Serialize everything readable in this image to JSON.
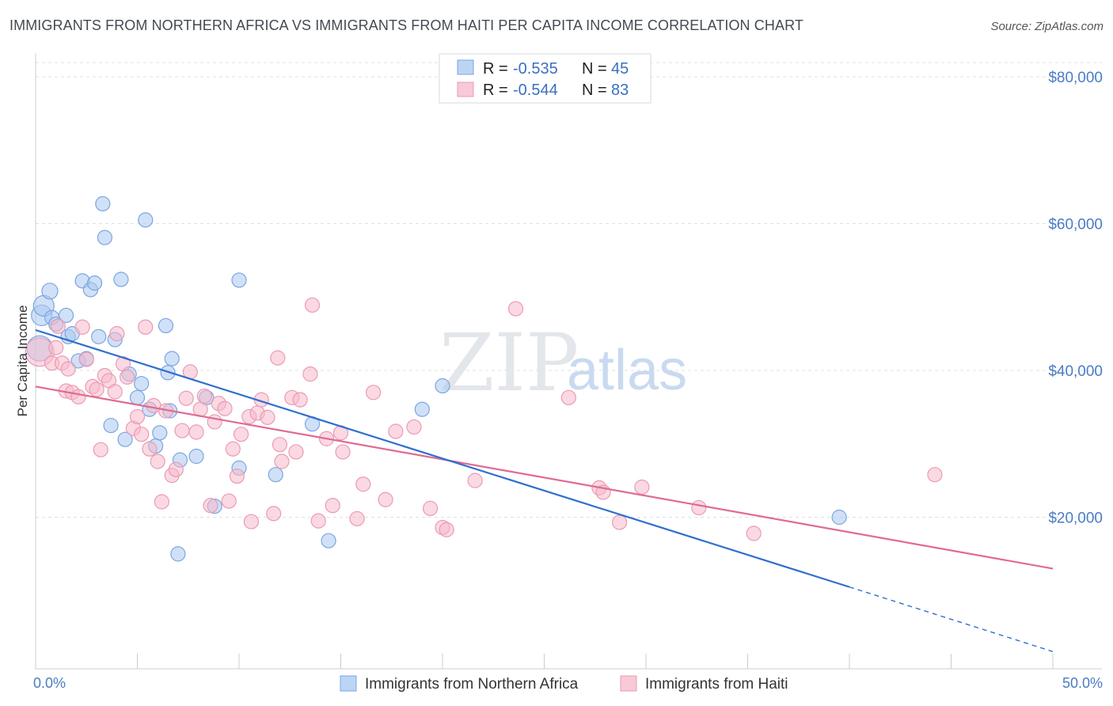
{
  "title": "IMMIGRANTS FROM NORTHERN AFRICA VS IMMIGRANTS FROM HAITI PER CAPITA INCOME CORRELATION CHART",
  "source": "Source: ZipAtlas.com",
  "watermark": {
    "zip": "ZIP",
    "atlas": "atlas"
  },
  "colors": {
    "blue_fill": "#a9c8f0",
    "blue_stroke": "#7aa6e0",
    "blue_line": "#2f6fce",
    "pink_fill": "#f5b9cb",
    "pink_stroke": "#ec9ab4",
    "pink_line": "#e06a93",
    "grid": "#dde1e6",
    "tick_text": "#4a7cc4"
  },
  "legend": {
    "rows": [
      {
        "r_label": "R = ",
        "r_value": "-0.535",
        "n_label": "N = ",
        "n_value": "45",
        "series": "blue"
      },
      {
        "r_label": "R = ",
        "r_value": "-0.544",
        "n_label": "N = ",
        "n_value": "83",
        "series": "pink"
      }
    ]
  },
  "chart_data": {
    "type": "scatter",
    "ylabel": "Per Capita Income",
    "xlim": [
      0,
      50
    ],
    "ylim": [
      0,
      80000
    ],
    "x_tick_labels": [
      "0.0%",
      "50.0%"
    ],
    "y_ticks": [
      20000,
      40000,
      60000,
      80000
    ],
    "y_tick_labels": [
      "$20,000",
      "$40,000",
      "$60,000",
      "$80,000"
    ],
    "grid": "horizontal dashed",
    "legend_placement": "top-center",
    "series": [
      {
        "name": "Immigrants from Northern Africa",
        "color": "blue",
        "trend": {
          "x0": 0,
          "y0": 45500,
          "x1": 40,
          "y1": 10500,
          "dash_to_x": 50,
          "dash_to_y": 1700
        },
        "points": [
          [
            0.2,
            43000,
            16
          ],
          [
            0.3,
            47500,
            13
          ],
          [
            0.4,
            48800,
            13
          ],
          [
            0.7,
            50800,
            10
          ],
          [
            0.8,
            47200,
            9
          ],
          [
            1.0,
            46300,
            9
          ],
          [
            1.5,
            47500,
            9
          ],
          [
            1.6,
            44600,
            9
          ],
          [
            1.8,
            45000,
            9
          ],
          [
            2.1,
            41300,
            9
          ],
          [
            2.3,
            52200,
            9
          ],
          [
            2.5,
            41600,
            9
          ],
          [
            2.7,
            51000,
            9
          ],
          [
            2.9,
            51900,
            9
          ],
          [
            3.1,
            44600,
            9
          ],
          [
            3.3,
            62700,
            9
          ],
          [
            3.4,
            58100,
            9
          ],
          [
            3.7,
            32500,
            9
          ],
          [
            3.9,
            44200,
            9
          ],
          [
            4.2,
            52400,
            9
          ],
          [
            4.4,
            30600,
            9
          ],
          [
            4.6,
            39500,
            9
          ],
          [
            5.0,
            36300,
            9
          ],
          [
            5.2,
            38200,
            9
          ],
          [
            5.4,
            60500,
            9
          ],
          [
            5.6,
            34700,
            9
          ],
          [
            5.9,
            29700,
            9
          ],
          [
            6.1,
            31500,
            9
          ],
          [
            6.4,
            46100,
            9
          ],
          [
            6.5,
            39700,
            9
          ],
          [
            6.6,
            34500,
            9
          ],
          [
            6.7,
            41600,
            9
          ],
          [
            7.0,
            15000,
            9
          ],
          [
            7.1,
            27800,
            9
          ],
          [
            7.9,
            28300,
            9
          ],
          [
            8.4,
            36300,
            9
          ],
          [
            8.8,
            21500,
            9
          ],
          [
            10.0,
            26700,
            9
          ],
          [
            10.0,
            52300,
            9
          ],
          [
            11.8,
            25800,
            9
          ],
          [
            13.6,
            32700,
            9
          ],
          [
            14.4,
            16800,
            9
          ],
          [
            19.0,
            34700,
            9
          ],
          [
            20.0,
            37900,
            9
          ],
          [
            39.5,
            20000,
            9
          ]
        ]
      },
      {
        "name": "Immigrants from Haiti",
        "color": "pink",
        "trend": {
          "x0": 0,
          "y0": 37800,
          "x1": 50,
          "y1": 13000
        },
        "points": [
          [
            0.2,
            42500,
            18
          ],
          [
            0.8,
            41000,
            9
          ],
          [
            1.0,
            43100,
            9
          ],
          [
            1.1,
            46000,
            9
          ],
          [
            1.3,
            41000,
            9
          ],
          [
            1.5,
            37200,
            9
          ],
          [
            1.6,
            40200,
            9
          ],
          [
            1.8,
            37000,
            9
          ],
          [
            2.1,
            36400,
            9
          ],
          [
            2.3,
            45900,
            9
          ],
          [
            2.5,
            41500,
            9
          ],
          [
            2.8,
            37800,
            9
          ],
          [
            3.0,
            37400,
            9
          ],
          [
            3.2,
            29200,
            9
          ],
          [
            3.4,
            39300,
            9
          ],
          [
            3.6,
            38600,
            9
          ],
          [
            3.9,
            37100,
            9
          ],
          [
            4.0,
            45000,
            9
          ],
          [
            4.3,
            40900,
            9
          ],
          [
            4.5,
            39100,
            9
          ],
          [
            4.8,
            32100,
            9
          ],
          [
            5.0,
            33700,
            9
          ],
          [
            5.2,
            31300,
            9
          ],
          [
            5.4,
            45900,
            9
          ],
          [
            5.6,
            29300,
            9
          ],
          [
            5.8,
            35200,
            9
          ],
          [
            6.0,
            27600,
            9
          ],
          [
            6.2,
            22100,
            9
          ],
          [
            6.4,
            34500,
            9
          ],
          [
            6.7,
            25700,
            9
          ],
          [
            6.9,
            26500,
            9
          ],
          [
            7.2,
            31800,
            9
          ],
          [
            7.4,
            36200,
            9
          ],
          [
            7.6,
            39800,
            9
          ],
          [
            7.9,
            31600,
            9
          ],
          [
            8.1,
            34700,
            9
          ],
          [
            8.3,
            36500,
            9
          ],
          [
            8.6,
            21600,
            9
          ],
          [
            8.8,
            33000,
            9
          ],
          [
            9.0,
            35500,
            9
          ],
          [
            9.3,
            34800,
            9
          ],
          [
            9.5,
            22200,
            9
          ],
          [
            9.7,
            29300,
            9
          ],
          [
            9.9,
            25600,
            9
          ],
          [
            10.1,
            31300,
            9
          ],
          [
            10.5,
            33700,
            9
          ],
          [
            10.6,
            19400,
            9
          ],
          [
            10.9,
            34200,
            9
          ],
          [
            11.1,
            36000,
            9
          ],
          [
            11.4,
            33600,
            9
          ],
          [
            11.7,
            20500,
            9
          ],
          [
            11.9,
            41700,
            9
          ],
          [
            12.0,
            29900,
            9
          ],
          [
            12.1,
            27600,
            9
          ],
          [
            12.6,
            36300,
            9
          ],
          [
            12.8,
            28900,
            9
          ],
          [
            13.0,
            36000,
            9
          ],
          [
            13.5,
            39500,
            9
          ],
          [
            13.6,
            48900,
            9
          ],
          [
            13.9,
            19500,
            9
          ],
          [
            14.3,
            30700,
            9
          ],
          [
            14.6,
            21600,
            9
          ],
          [
            15.1,
            28900,
            9
          ],
          [
            15.8,
            19800,
            9
          ],
          [
            16.1,
            24500,
            9
          ],
          [
            16.6,
            37000,
            9
          ],
          [
            17.2,
            22400,
            9
          ],
          [
            17.7,
            31700,
            9
          ],
          [
            18.6,
            32300,
            9
          ],
          [
            19.4,
            21200,
            9
          ],
          [
            20.0,
            18600,
            9
          ],
          [
            20.2,
            18300,
            9
          ],
          [
            21.6,
            25000,
            9
          ],
          [
            23.6,
            48400,
            9
          ],
          [
            26.2,
            36300,
            9
          ],
          [
            27.7,
            24000,
            9
          ],
          [
            27.9,
            23400,
            9
          ],
          [
            28.7,
            19300,
            9
          ],
          [
            29.8,
            24100,
            9
          ],
          [
            32.6,
            21300,
            9
          ],
          [
            35.3,
            17800,
            9
          ],
          [
            44.2,
            25800,
            9
          ],
          [
            15.0,
            31500,
            9
          ]
        ]
      }
    ]
  }
}
